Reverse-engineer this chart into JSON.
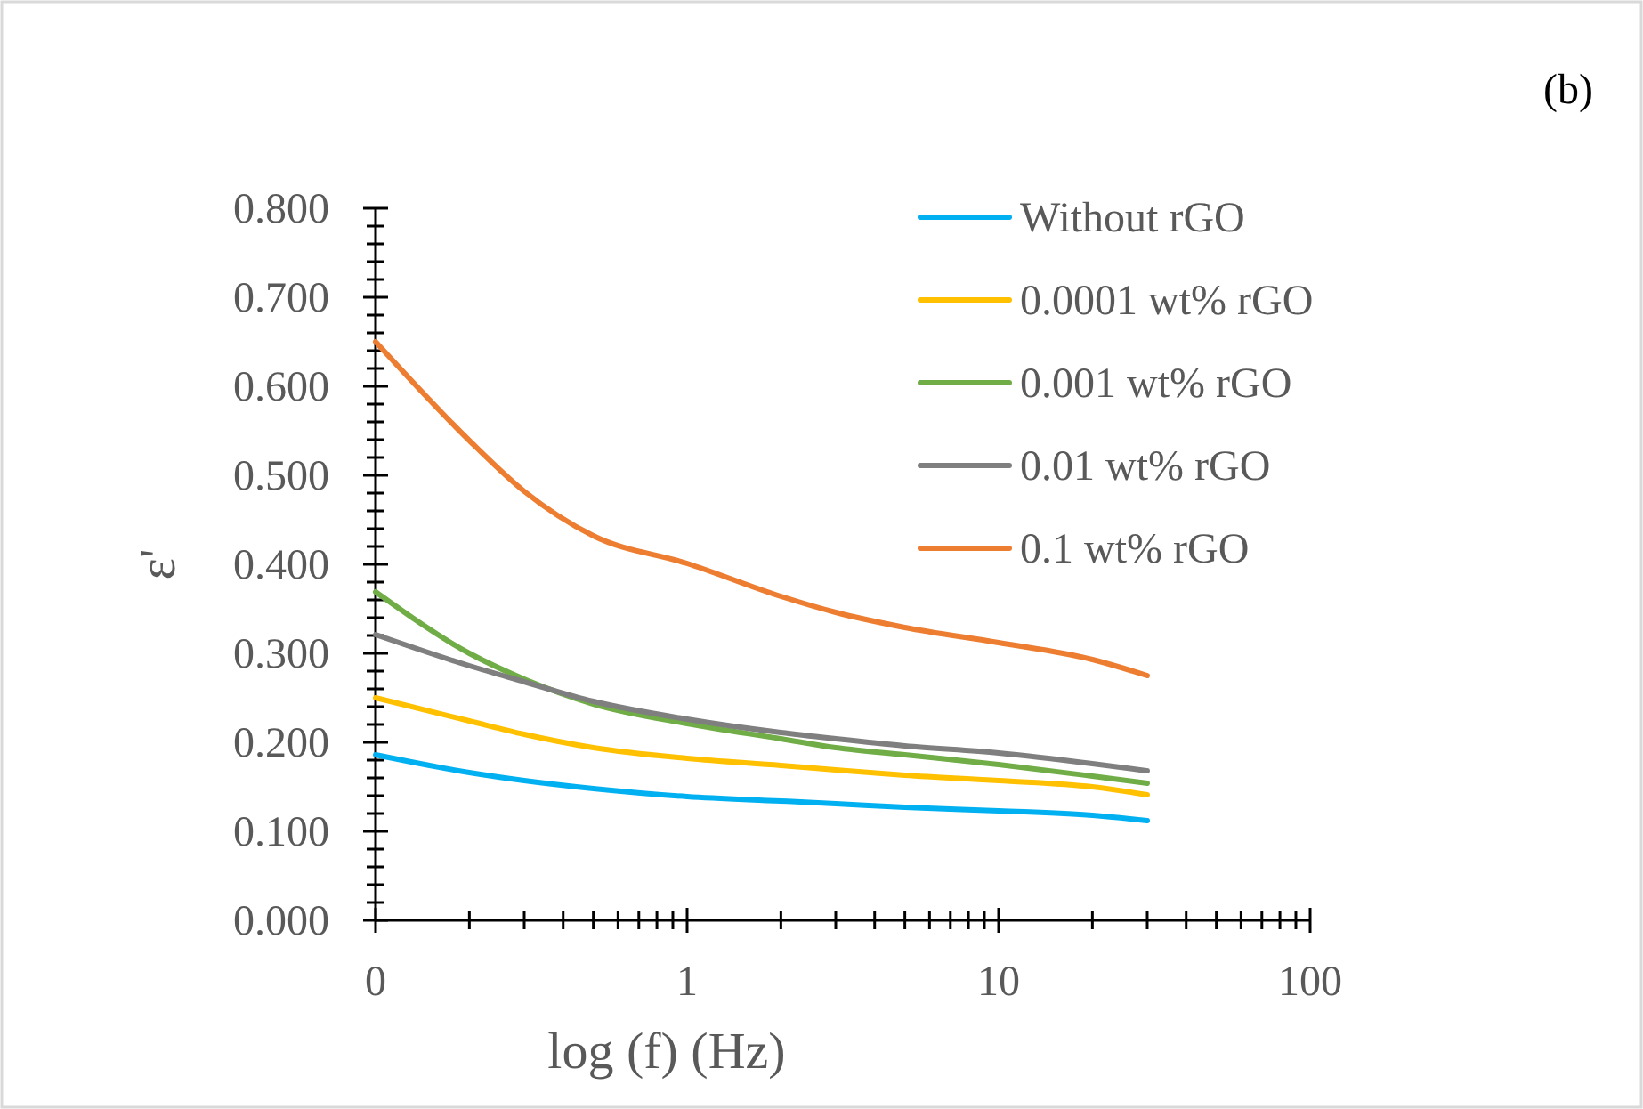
{
  "chart_data": {
    "type": "line",
    "xlabel": "log (f) (Hz)",
    "ylabel": "ε'",
    "annotations": [
      "(b)"
    ],
    "log": "x",
    "legend": "top right",
    "x": [
      0.1,
      0.2,
      0.3,
      0.5,
      1,
      2,
      3,
      5,
      10,
      20,
      30
    ],
    "xlim": [
      0.1,
      100
    ],
    "xticks": [
      {
        "value": 0.1,
        "label": "0"
      },
      {
        "value": 0.2,
        "label": null
      },
      {
        "value": 0.3,
        "label": null
      },
      {
        "value": 0.4,
        "label": null
      },
      {
        "value": 0.5,
        "label": null
      },
      {
        "value": 0.6,
        "label": null
      },
      {
        "value": 0.7,
        "label": null
      },
      {
        "value": 0.8,
        "label": null
      },
      {
        "value": 0.9,
        "label": null
      },
      1,
      {
        "value": 2,
        "label": null
      },
      {
        "value": 3,
        "label": null
      },
      {
        "value": 4,
        "label": null
      },
      {
        "value": 5,
        "label": null
      },
      {
        "value": 6,
        "label": null
      },
      {
        "value": 7,
        "label": null
      },
      {
        "value": 8,
        "label": null
      },
      {
        "value": 9,
        "label": null
      },
      10,
      {
        "value": 20,
        "label": null
      },
      {
        "value": 30,
        "label": null
      },
      {
        "value": 40,
        "label": null
      },
      {
        "value": 50,
        "label": null
      },
      {
        "value": 60,
        "label": null
      },
      {
        "value": 70,
        "label": null
      },
      {
        "value": 80,
        "label": null
      },
      {
        "value": 90,
        "label": null
      },
      100
    ],
    "ylim": [
      0,
      0.8
    ],
    "yticks": [
      {
        "value": 0,
        "label": "0.000"
      },
      {
        "value": 0.02,
        "label": null
      },
      {
        "value": 0.04,
        "label": null
      },
      {
        "value": 0.06,
        "label": null
      },
      {
        "value": 0.08,
        "label": null
      },
      {
        "value": 0.1,
        "label": "0.100"
      },
      {
        "value": 0.12,
        "label": null
      },
      {
        "value": 0.14,
        "label": null
      },
      {
        "value": 0.16,
        "label": null
      },
      {
        "value": 0.18,
        "label": null
      },
      {
        "value": 0.2,
        "label": "0.200"
      },
      {
        "value": 0.22,
        "label": null
      },
      {
        "value": 0.24,
        "label": null
      },
      {
        "value": 0.26,
        "label": null
      },
      {
        "value": 0.28,
        "label": null
      },
      {
        "value": 0.3,
        "label": "0.300"
      },
      {
        "value": 0.32,
        "label": null
      },
      {
        "value": 0.34,
        "label": null
      },
      {
        "value": 0.36,
        "label": null
      },
      {
        "value": 0.38,
        "label": null
      },
      {
        "value": 0.4,
        "label": "0.400"
      },
      {
        "value": 0.42,
        "label": null
      },
      {
        "value": 0.44,
        "label": null
      },
      {
        "value": 0.46,
        "label": null
      },
      {
        "value": 0.48,
        "label": null
      },
      {
        "value": 0.5,
        "label": "0.500"
      },
      {
        "value": 0.52,
        "label": null
      },
      {
        "value": 0.54,
        "label": null
      },
      {
        "value": 0.56,
        "label": null
      },
      {
        "value": 0.58,
        "label": null
      },
      {
        "value": 0.6,
        "label": "0.600"
      },
      {
        "value": 0.62,
        "label": null
      },
      {
        "value": 0.64,
        "label": null
      },
      {
        "value": 0.66,
        "label": null
      },
      {
        "value": 0.68,
        "label": null
      },
      {
        "value": 0.7,
        "label": "0.700"
      },
      {
        "value": 0.72,
        "label": null
      },
      {
        "value": 0.74,
        "label": null
      },
      {
        "value": 0.76,
        "label": null
      },
      {
        "value": 0.78,
        "label": null
      },
      {
        "value": 0.8,
        "label": "0.800"
      }
    ],
    "series": [
      {
        "name": "Without rGO",
        "color": "#00b0f0",
        "values": [
          0.186,
          0.166,
          0.157,
          0.148,
          0.139,
          0.134,
          0.131,
          0.127,
          0.123,
          0.118,
          0.112
        ]
      },
      {
        "name": "0.0001 wt% rGO",
        "color": "#ffc000",
        "values": [
          0.25,
          0.224,
          0.209,
          0.194,
          0.182,
          0.174,
          0.169,
          0.163,
          0.157,
          0.15,
          0.141
        ]
      },
      {
        "name": "0.001 wt% rGO",
        "color": "#70ad47",
        "values": [
          0.369,
          0.3,
          0.271,
          0.243,
          0.221,
          0.204,
          0.194,
          0.186,
          0.175,
          0.162,
          0.154
        ]
      },
      {
        "name": "0.01 wt% rGO",
        "color": "#7f7f7f",
        "values": [
          0.321,
          0.286,
          0.268,
          0.246,
          0.226,
          0.211,
          0.204,
          0.196,
          0.188,
          0.176,
          0.168
        ]
      },
      {
        "name": "0.1 wt% rGO",
        "color": "#ed7d31",
        "values": [
          0.65,
          0.539,
          0.482,
          0.432,
          0.401,
          0.364,
          0.346,
          0.329,
          0.312,
          0.293,
          0.275
        ]
      }
    ]
  }
}
